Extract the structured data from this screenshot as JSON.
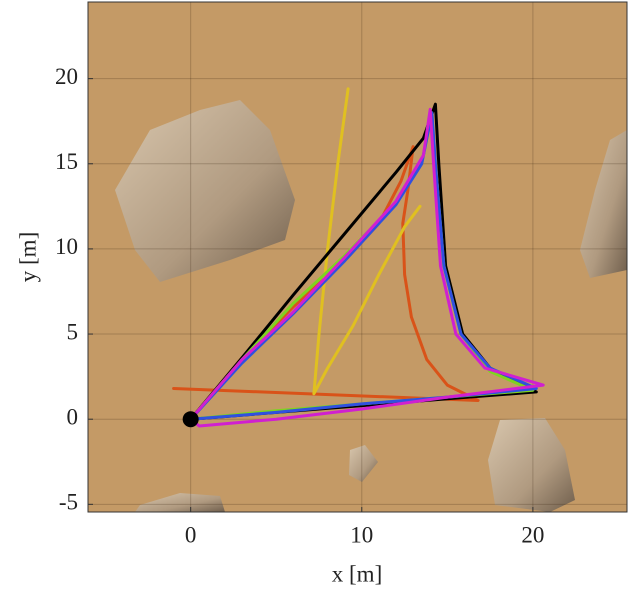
{
  "chart_data": {
    "type": "line",
    "xlabel": "x [m]",
    "ylabel": "y [m]",
    "xlim": [
      -6,
      25.5
    ],
    "ylim": [
      -5.45,
      24.5
    ],
    "xticks": [
      0,
      10,
      20
    ],
    "yticks": [
      -5,
      0,
      5,
      10,
      15,
      20
    ],
    "grid": true,
    "series": [
      {
        "color": "#d95319",
        "x": [
          0,
          3,
          6,
          9,
          11,
          12.3,
          13,
          12.7,
          12.4,
          12.5,
          12.9,
          13.8,
          15,
          16.8,
          -1
        ],
        "values": [
          0,
          3.6,
          6.6,
          9.3,
          11.5,
          14,
          16,
          13.5,
          11.5,
          8.5,
          6,
          3.5,
          2,
          1.1,
          1.8
        ]
      },
      {
        "color": "#e0c020",
        "x": [
          9.2,
          8.6,
          8,
          7.5,
          7.2,
          8,
          9.5,
          11,
          12.5,
          13.4
        ],
        "values": [
          19.4,
          15,
          10,
          5,
          1.5,
          3,
          5.5,
          8.5,
          11.3,
          12.5
        ]
      },
      {
        "color": "#000000",
        "x": [
          0,
          3,
          6,
          9,
          12,
          13.6,
          14.3,
          14.5,
          14.9,
          15.9,
          17.5,
          20.2,
          15,
          10,
          5,
          0
        ],
        "values": [
          0,
          3.6,
          7.3,
          10.9,
          14.5,
          16.5,
          18.5,
          15,
          9,
          5,
          3,
          1.6,
          1.2,
          0.8,
          0.4,
          0
        ]
      },
      {
        "color": "#7ed321",
        "x": [
          0,
          3,
          6,
          9,
          12,
          13.5,
          14.1,
          14.3,
          14.8,
          15.8,
          17.5,
          20,
          15,
          10,
          5,
          0
        ],
        "values": [
          0,
          3.5,
          6.8,
          9.6,
          12.7,
          15,
          18,
          15,
          9,
          5,
          2.8,
          1.7,
          1.3,
          0.9,
          0.5,
          0
        ]
      },
      {
        "color": "#3050e0",
        "x": [
          0,
          3,
          6,
          9,
          12,
          13.5,
          14.1,
          14.3,
          14.8,
          15.8,
          17.5,
          20.2,
          15,
          10,
          5,
          0
        ],
        "values": [
          0,
          3.3,
          6.2,
          9.3,
          12.6,
          15,
          18,
          15,
          9,
          5,
          3,
          1.8,
          1.3,
          0.9,
          0.4,
          0
        ]
      },
      {
        "color": "#d020d0",
        "x": [
          0,
          3,
          6,
          9,
          12,
          13.6,
          14,
          14.2,
          14.6,
          15.5,
          17.2,
          20.6,
          15,
          10,
          5,
          0.5,
          0
        ],
        "values": [
          0,
          3.5,
          6.3,
          9.5,
          12.8,
          15.5,
          18.2,
          15,
          9,
          5,
          3,
          2,
          1.3,
          0.6,
          0,
          -0.4,
          0
        ]
      }
    ],
    "markers": [
      {
        "x": 0,
        "y": 0,
        "color": "#000000"
      }
    ]
  }
}
